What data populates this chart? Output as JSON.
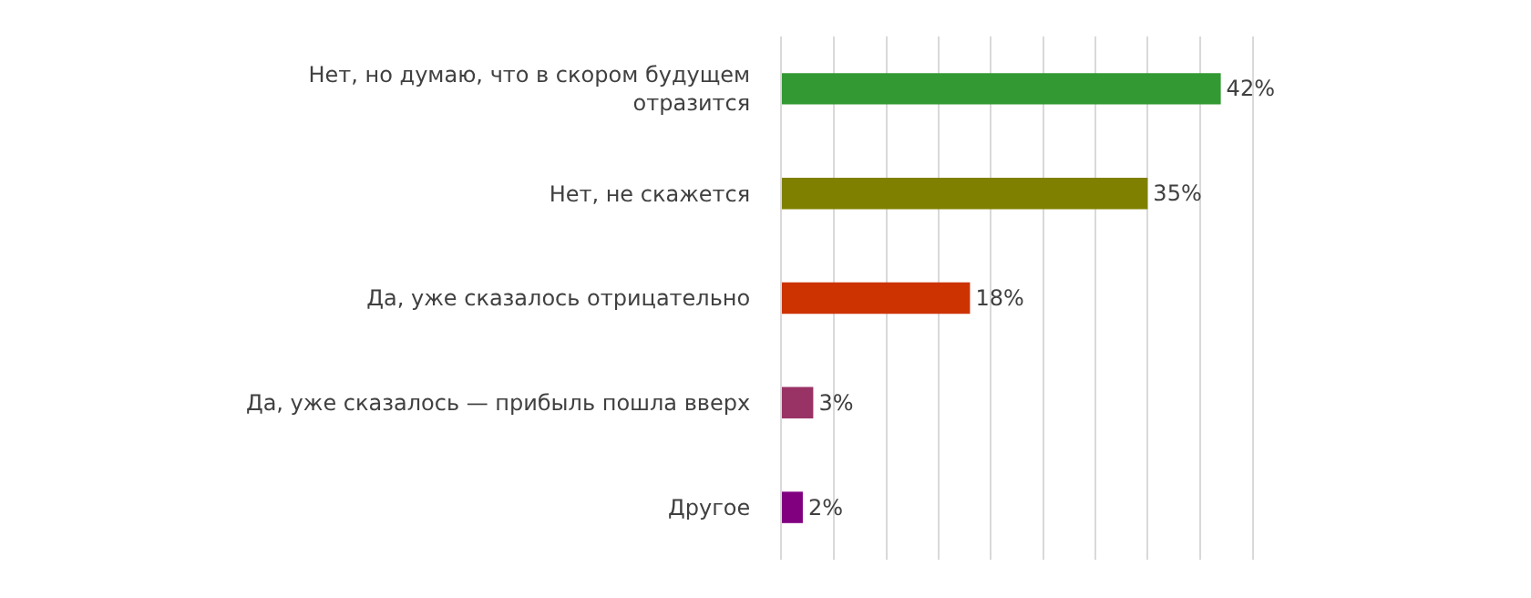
{
  "chart_data": {
    "type": "bar",
    "orientation": "horizontal",
    "categories": [
      "Нет, но думаю, что в скором будущем отразится",
      "Нет, не скажется",
      "Да, уже сказалось отрицательно",
      "Да, уже сказалось — прибыль пошла вверх",
      "Другое"
    ],
    "values": [
      42,
      35,
      18,
      3,
      2
    ],
    "colors": [
      "#339933",
      "#808000",
      "#cc3300",
      "#993366",
      "#800080"
    ],
    "value_labels": [
      "42%",
      "35%",
      "18%",
      "3%",
      "2%"
    ],
    "xlim": [
      0,
      45
    ],
    "xticks": [
      {
        "value": 0,
        "label": null
      },
      {
        "value": 5,
        "label": null
      },
      {
        "value": 10,
        "label": null
      },
      {
        "value": 15,
        "label": null
      },
      {
        "value": 20,
        "label": null
      },
      {
        "value": 25,
        "label": null
      },
      {
        "value": 30,
        "label": null
      },
      {
        "value": 35,
        "label": null
      },
      {
        "value": 40,
        "label": null
      },
      {
        "value": 45,
        "label": null
      }
    ],
    "tick_labels": "y",
    "grid": "x",
    "legend": false
  }
}
